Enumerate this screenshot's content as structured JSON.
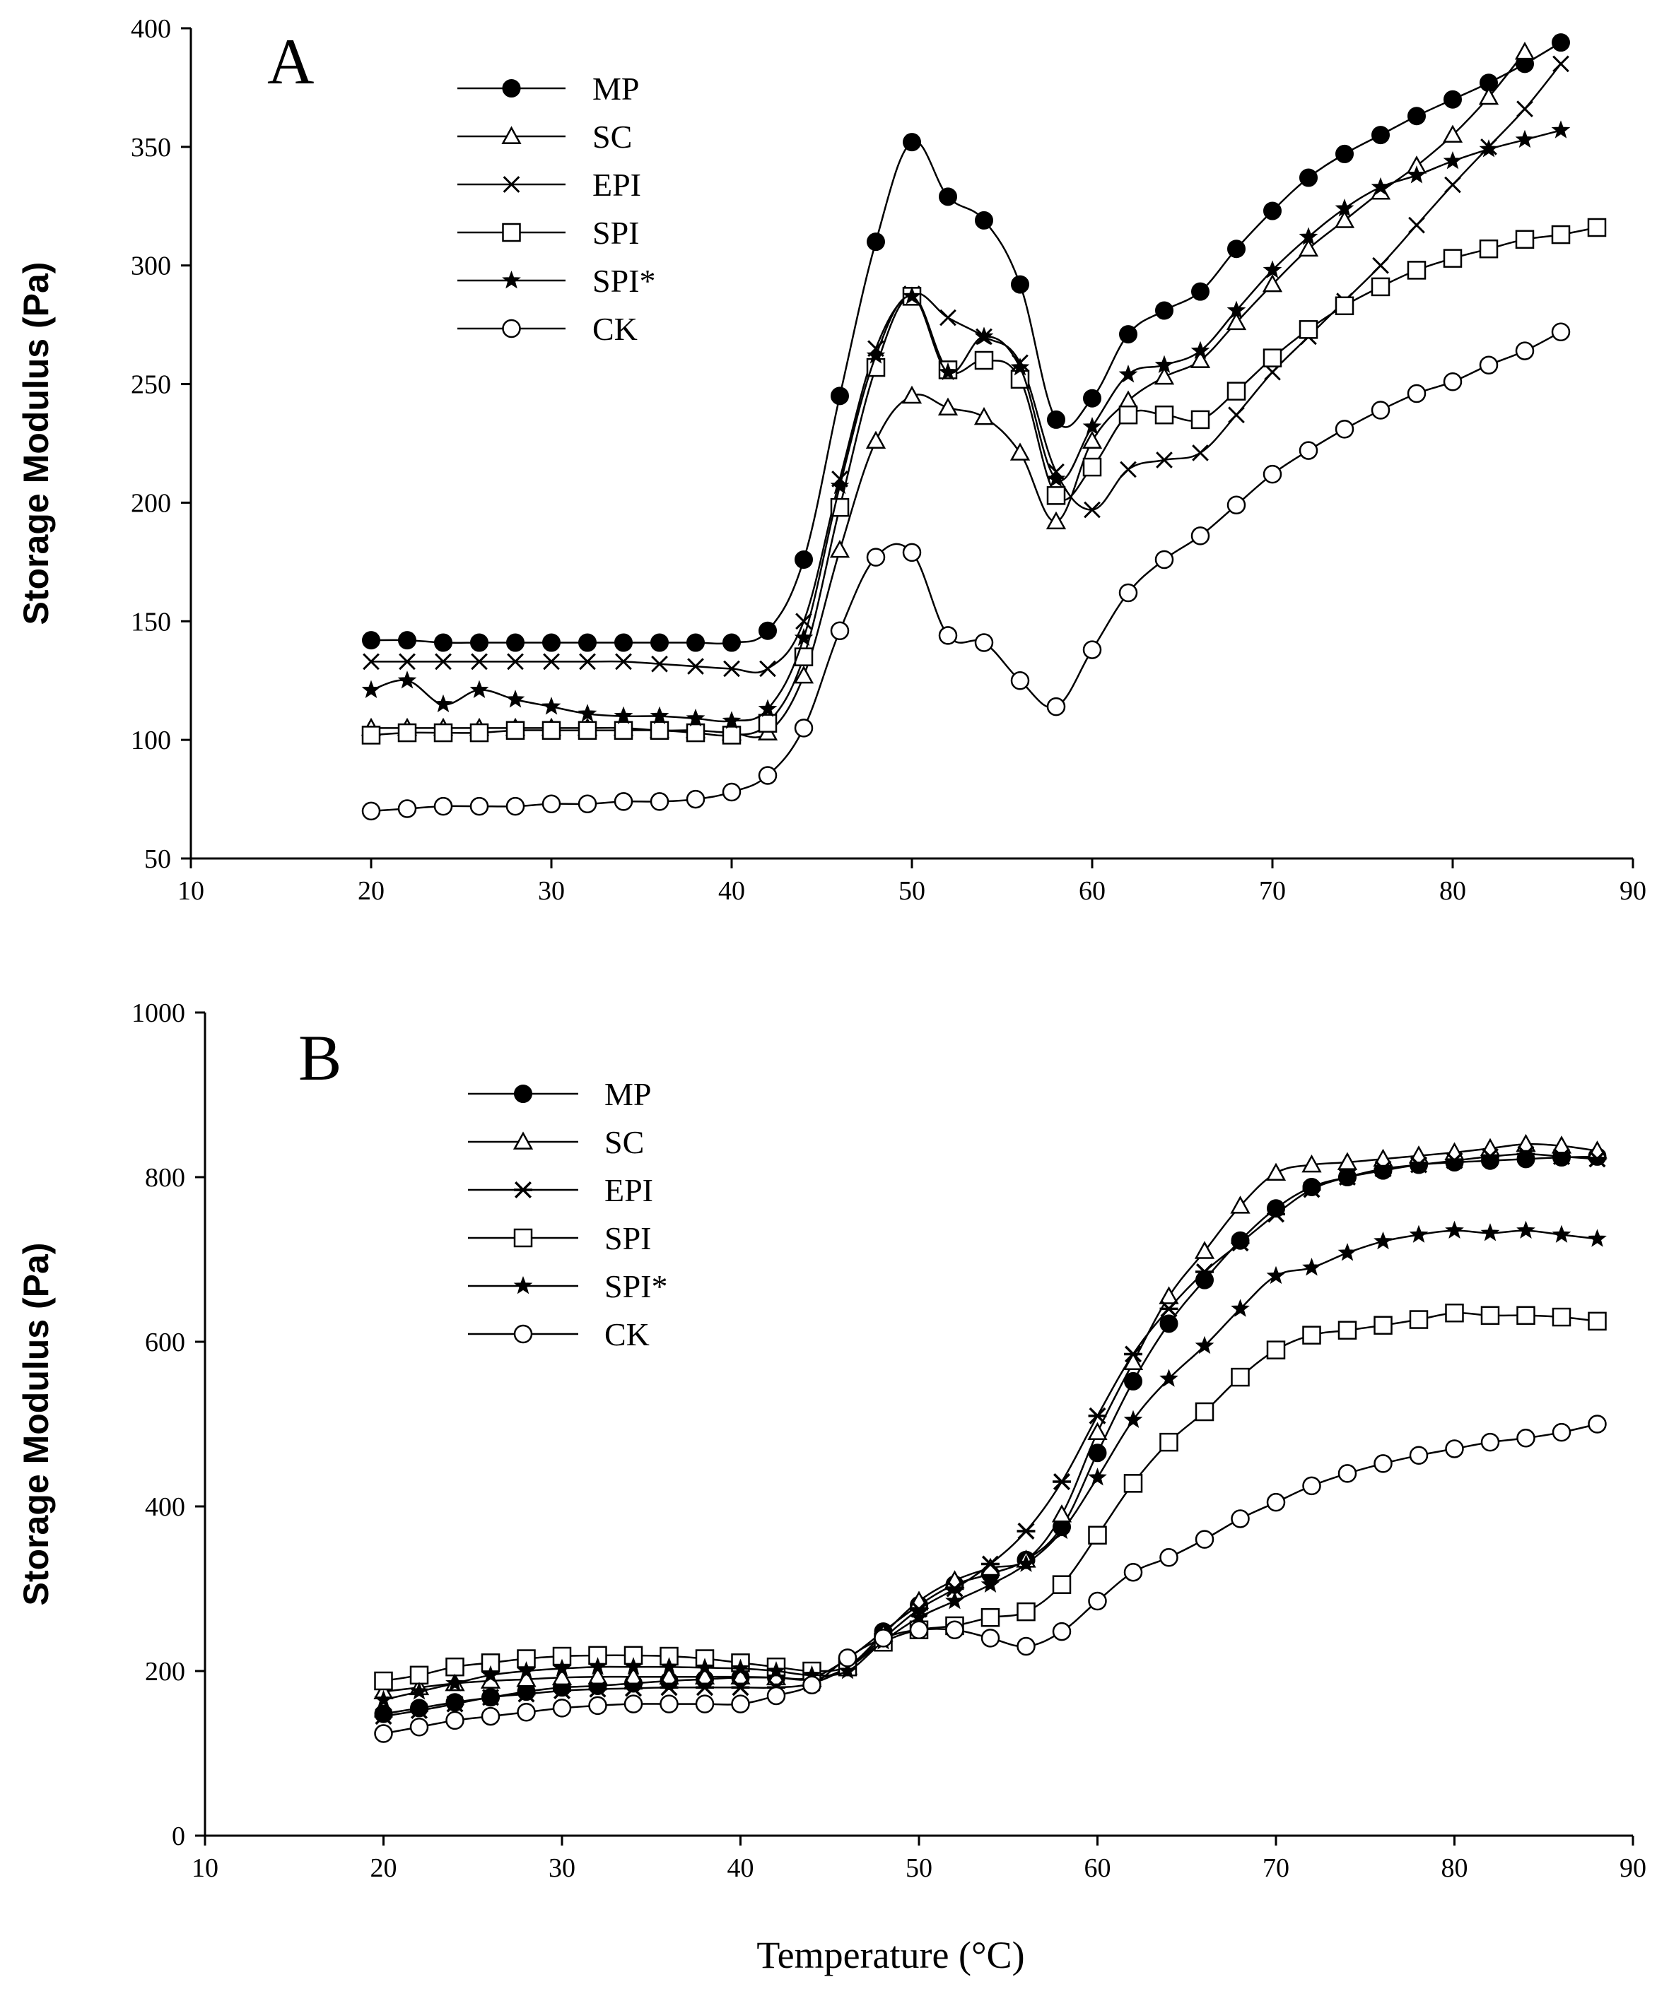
{
  "chart_data": [
    {
      "type": "line",
      "panel_label": "A",
      "ylabel": "Storage Modulus (Pa)",
      "xlabel": "",
      "xlim": [
        10,
        90
      ],
      "ylim": [
        50,
        400
      ],
      "xticks": [
        10,
        20,
        30,
        40,
        50,
        60,
        70,
        80,
        90
      ],
      "yticks": [
        50,
        100,
        150,
        200,
        250,
        300,
        350,
        400
      ],
      "legend_position": "top-left",
      "grid": false,
      "series": [
        {
          "name": "MP",
          "marker": "filled-circle",
          "x": [
            20,
            22,
            24,
            26,
            28,
            30,
            32,
            34,
            36,
            38,
            40,
            42,
            44,
            46,
            48,
            50,
            52,
            54,
            56,
            58,
            60,
            62,
            64,
            66,
            68,
            70,
            72,
            74,
            76,
            78,
            80,
            82,
            84,
            86
          ],
          "y": [
            142,
            142,
            141,
            141,
            141,
            141,
            141,
            141,
            141,
            141,
            141,
            146,
            176,
            245,
            310,
            352,
            329,
            319,
            292,
            235,
            244,
            271,
            281,
            289,
            307,
            323,
            337,
            347,
            355,
            363,
            370,
            377,
            385,
            394
          ]
        },
        {
          "name": "SC",
          "marker": "open-triangle",
          "x": [
            20,
            22,
            24,
            26,
            28,
            30,
            32,
            34,
            36,
            38,
            40,
            42,
            44,
            46,
            48,
            50,
            52,
            54,
            56,
            58,
            60,
            62,
            64,
            66,
            68,
            70,
            72,
            74,
            76,
            78,
            80,
            82,
            84
          ],
          "y": [
            105,
            105,
            105,
            105,
            105,
            105,
            105,
            105,
            104,
            104,
            103,
            103,
            127,
            180,
            226,
            245,
            240,
            236,
            221,
            192,
            226,
            243,
            253,
            260,
            276,
            292,
            307,
            319,
            331,
            342,
            355,
            371,
            390
          ]
        },
        {
          "name": "EPI",
          "marker": "cross",
          "x": [
            20,
            22,
            24,
            26,
            28,
            30,
            32,
            34,
            36,
            38,
            40,
            42,
            44,
            46,
            48,
            50,
            52,
            54,
            56,
            58,
            60,
            62,
            64,
            66,
            68,
            70,
            72,
            74,
            76,
            78,
            80,
            82,
            84,
            86
          ],
          "y": [
            133,
            133,
            133,
            133,
            133,
            133,
            133,
            133,
            132,
            131,
            130,
            130,
            150,
            210,
            265,
            288,
            278,
            270,
            259,
            213,
            197,
            214,
            218,
            221,
            237,
            255,
            270,
            285,
            300,
            317,
            334,
            350,
            366,
            385
          ]
        },
        {
          "name": "SPI",
          "marker": "open-square",
          "x": [
            20,
            22,
            24,
            26,
            28,
            30,
            32,
            34,
            36,
            38,
            40,
            42,
            44,
            46,
            48,
            50,
            52,
            54,
            56,
            58,
            60,
            62,
            64,
            66,
            68,
            70,
            72,
            74,
            76,
            78,
            80,
            82,
            84,
            86,
            88
          ],
          "y": [
            102,
            103,
            103,
            103,
            104,
            104,
            104,
            104,
            104,
            103,
            102,
            107,
            135,
            198,
            257,
            287,
            256,
            260,
            252,
            203,
            215,
            237,
            237,
            235,
            247,
            261,
            273,
            283,
            291,
            298,
            303,
            307,
            311,
            313,
            316
          ]
        },
        {
          "name": "SPI*",
          "marker": "star",
          "x": [
            20,
            22,
            24,
            26,
            28,
            30,
            32,
            34,
            36,
            38,
            40,
            42,
            44,
            46,
            48,
            50,
            52,
            54,
            56,
            58,
            60,
            62,
            64,
            66,
            68,
            70,
            72,
            74,
            76,
            78,
            80,
            82,
            84,
            86
          ],
          "y": [
            121,
            125,
            115,
            121,
            117,
            114,
            111,
            110,
            110,
            109,
            108,
            113,
            143,
            207,
            262,
            287,
            255,
            270,
            257,
            210,
            232,
            254,
            258,
            264,
            281,
            298,
            312,
            324,
            333,
            338,
            344,
            349,
            353,
            357
          ]
        },
        {
          "name": "CK",
          "marker": "open-circle",
          "x": [
            20,
            22,
            24,
            26,
            28,
            30,
            32,
            34,
            36,
            38,
            40,
            42,
            44,
            46,
            48,
            50,
            52,
            54,
            56,
            58,
            60,
            62,
            64,
            66,
            68,
            70,
            72,
            74,
            76,
            78,
            80,
            82,
            84,
            86
          ],
          "y": [
            70,
            71,
            72,
            72,
            72,
            73,
            73,
            74,
            74,
            75,
            78,
            85,
            105,
            146,
            177,
            179,
            144,
            141,
            125,
            114,
            138,
            162,
            176,
            186,
            199,
            212,
            222,
            231,
            239,
            246,
            251,
            258,
            264,
            272
          ]
        }
      ]
    },
    {
      "type": "line",
      "panel_label": "B",
      "ylabel": "Storage Modulus (Pa)",
      "xlabel": "Temperature (°C)",
      "xlim": [
        10,
        90
      ],
      "ylim": [
        0,
        1000
      ],
      "xticks": [
        10,
        20,
        30,
        40,
        50,
        60,
        70,
        80,
        90
      ],
      "yticks": [
        0,
        200,
        400,
        600,
        800,
        1000
      ],
      "legend_position": "top-left",
      "grid": false,
      "series": [
        {
          "name": "MP",
          "marker": "filled-circle",
          "x": [
            20,
            22,
            24,
            26,
            28,
            30,
            32,
            34,
            36,
            38,
            40,
            42,
            44,
            46,
            48,
            50,
            52,
            54,
            56,
            58,
            60,
            62,
            64,
            66,
            68,
            70,
            72,
            74,
            76,
            78,
            80,
            82,
            84,
            86,
            88
          ],
          "y": [
            148,
            155,
            162,
            168,
            175,
            180,
            182,
            185,
            188,
            190,
            192,
            192,
            192,
            215,
            248,
            280,
            305,
            318,
            335,
            375,
            465,
            552,
            622,
            675,
            723,
            762,
            788,
            800,
            808,
            815,
            818,
            820,
            822,
            824,
            825
          ]
        },
        {
          "name": "SC",
          "marker": "open-triangle",
          "x": [
            20,
            22,
            24,
            26,
            28,
            30,
            32,
            34,
            36,
            38,
            40,
            42,
            44,
            46,
            48,
            50,
            52,
            54,
            56,
            58,
            60,
            62,
            64,
            66,
            68,
            70,
            72,
            74,
            76,
            78,
            80,
            82,
            84,
            86,
            88
          ],
          "y": [
            175,
            180,
            185,
            188,
            190,
            192,
            193,
            193,
            193,
            193,
            193,
            192,
            190,
            205,
            245,
            285,
            310,
            325,
            335,
            390,
            490,
            575,
            655,
            710,
            765,
            805,
            815,
            818,
            822,
            826,
            830,
            835,
            840,
            838,
            832
          ]
        },
        {
          "name": "EPI",
          "marker": "x-star",
          "x": [
            20,
            22,
            24,
            26,
            28,
            30,
            32,
            34,
            36,
            38,
            40,
            42,
            44,
            46,
            48,
            50,
            52,
            54,
            56,
            58,
            60,
            62,
            64,
            66,
            68,
            70,
            72,
            74,
            76,
            78,
            80,
            82,
            84,
            86,
            88
          ],
          "y": [
            145,
            152,
            160,
            168,
            172,
            176,
            178,
            179,
            180,
            180,
            180,
            180,
            185,
            205,
            240,
            275,
            300,
            330,
            370,
            430,
            510,
            585,
            640,
            685,
            720,
            755,
            785,
            800,
            810,
            815,
            820,
            825,
            828,
            825,
            822
          ]
        },
        {
          "name": "SPI",
          "marker": "open-square",
          "x": [
            20,
            22,
            24,
            26,
            28,
            30,
            32,
            34,
            36,
            38,
            40,
            42,
            44,
            46,
            48,
            50,
            52,
            54,
            56,
            58,
            60,
            62,
            64,
            66,
            68,
            70,
            72,
            74,
            76,
            78,
            80,
            82,
            84,
            86,
            88
          ],
          "y": [
            188,
            195,
            205,
            210,
            215,
            218,
            219,
            219,
            218,
            215,
            210,
            205,
            200,
            205,
            235,
            250,
            255,
            265,
            272,
            305,
            365,
            428,
            478,
            515,
            557,
            590,
            608,
            614,
            620,
            627,
            635,
            632,
            632,
            630,
            625
          ]
        },
        {
          "name": "SPI*",
          "marker": "star",
          "x": [
            20,
            22,
            24,
            26,
            28,
            30,
            32,
            34,
            36,
            38,
            40,
            42,
            44,
            46,
            48,
            50,
            52,
            54,
            56,
            58,
            60,
            62,
            64,
            66,
            68,
            70,
            72,
            74,
            76,
            78,
            80,
            82,
            84,
            86,
            88
          ],
          "y": [
            165,
            175,
            185,
            195,
            200,
            203,
            205,
            205,
            205,
            204,
            203,
            200,
            195,
            200,
            236,
            265,
            285,
            305,
            330,
            370,
            435,
            505,
            555,
            595,
            640,
            680,
            690,
            708,
            722,
            730,
            735,
            732,
            735,
            730,
            725
          ]
        },
        {
          "name": "CK",
          "marker": "open-circle",
          "x": [
            20,
            22,
            24,
            26,
            28,
            30,
            32,
            34,
            36,
            38,
            40,
            42,
            44,
            46,
            48,
            50,
            52,
            54,
            56,
            58,
            60,
            62,
            64,
            66,
            68,
            70,
            72,
            74,
            76,
            78,
            80,
            82,
            84,
            86,
            88
          ],
          "y": [
            124,
            132,
            140,
            145,
            150,
            155,
            158,
            160,
            160,
            160,
            160,
            170,
            183,
            216,
            240,
            250,
            250,
            240,
            230,
            248,
            285,
            320,
            338,
            360,
            385,
            405,
            425,
            440,
            452,
            462,
            470,
            478,
            483,
            490,
            500
          ]
        }
      ]
    }
  ]
}
